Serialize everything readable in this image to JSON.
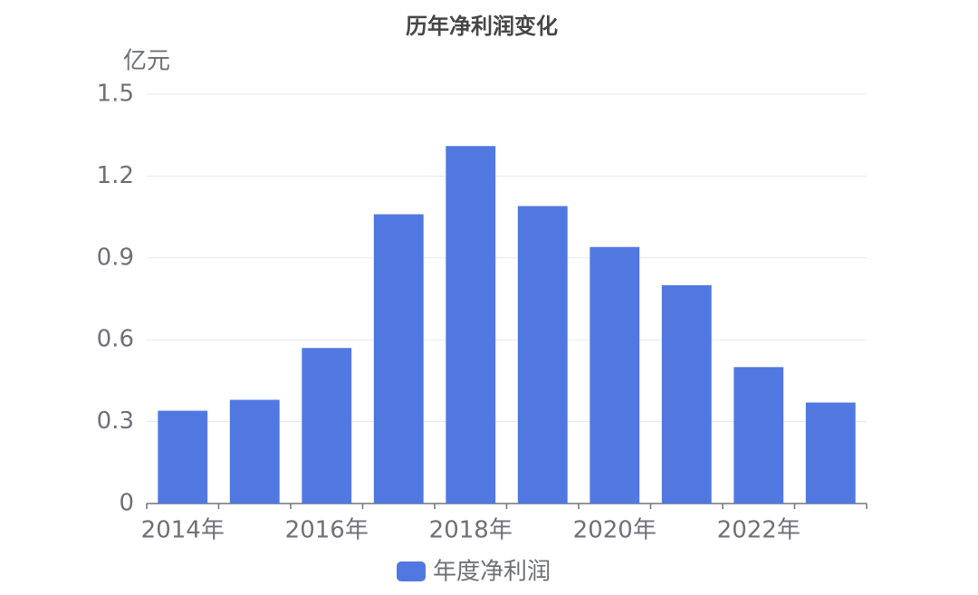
{
  "chart_data": {
    "type": "bar",
    "title": "历年净利润变化",
    "y_label": "亿元",
    "categories": [
      "2014年",
      null,
      "2016年",
      null,
      "2018年",
      null,
      "2020年",
      null,
      "2022年",
      null
    ],
    "series": [
      {
        "name": "年度净利润",
        "color": "#5078e0",
        "values": [
          0.34,
          0.38,
          0.57,
          1.06,
          1.31,
          1.09,
          0.94,
          0.8,
          0.5,
          0.37
        ]
      }
    ],
    "ylim": [
      0,
      1.5
    ],
    "yticks": [
      0,
      0.3,
      0.6,
      0.9,
      1.2,
      1.5
    ],
    "grid": true
  }
}
